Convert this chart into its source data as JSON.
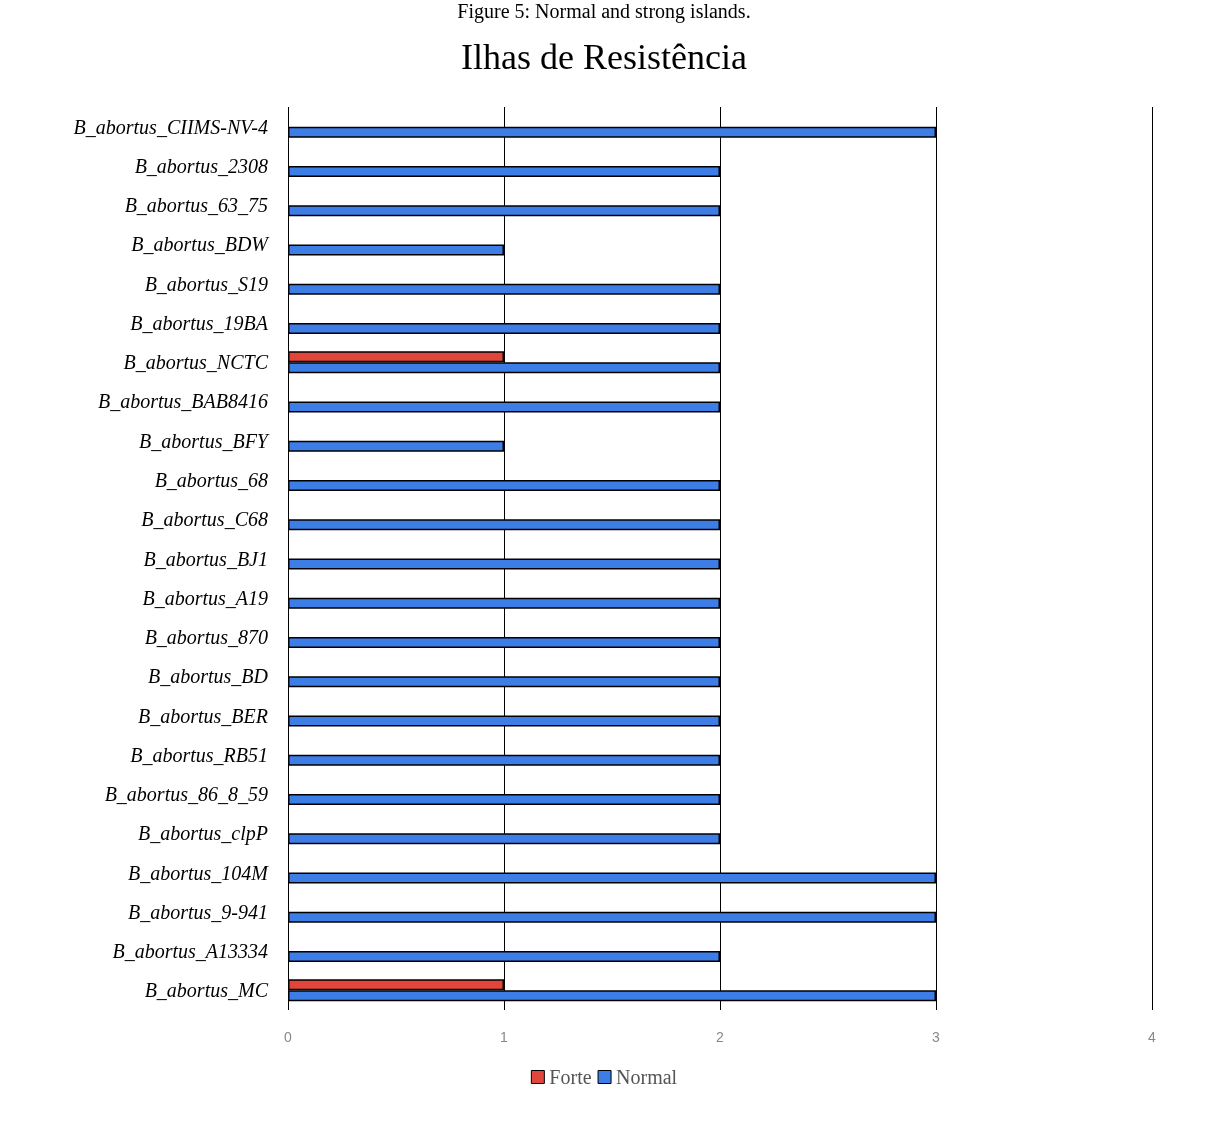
{
  "chart_data": {
    "type": "bar",
    "orientation": "horizontal",
    "title": "Ilhas de Resistência",
    "annotations": [
      "Figure 5: Normal and strong islands."
    ],
    "categories": [
      "B_abortus_CIIMS-NV-4",
      "B_abortus_2308",
      "B_abortus_63_75",
      "B_abortus_BDW",
      "B_abortus_S19",
      "B_abortus_19BA",
      "B_abortus_NCTC",
      "B_abortus_BAB8416",
      "B_abortus_BFY",
      "B_abortus_68",
      "B_abortus_C68",
      "B_abortus_BJ1",
      "B_abortus_A19",
      "B_abortus_870",
      "B_abortus_BD",
      "B_abortus_BER",
      "B_abortus_RB51",
      "B_abortus_86_8_59",
      "B_abortus_clpP",
      "B_abortus_104M",
      "B_abortus_9-941",
      "B_abortus_A13334",
      "B_abortus_MC"
    ],
    "series": [
      {
        "name": "Forte",
        "color": "#e0463c",
        "values": [
          null,
          null,
          null,
          null,
          null,
          null,
          1,
          null,
          null,
          null,
          null,
          null,
          null,
          null,
          null,
          null,
          null,
          null,
          null,
          null,
          null,
          null,
          1
        ]
      },
      {
        "name": "Normal",
        "color": "#3d7de6",
        "values": [
          3,
          2,
          2,
          1,
          2,
          2,
          2,
          2,
          1,
          2,
          2,
          2,
          2,
          2,
          2,
          2,
          2,
          2,
          2,
          3,
          3,
          2,
          3
        ]
      }
    ],
    "xlim": [
      0,
      4
    ],
    "xticks": [
      0,
      1,
      2,
      3,
      4
    ],
    "grid": "x",
    "legend": "bottom"
  }
}
